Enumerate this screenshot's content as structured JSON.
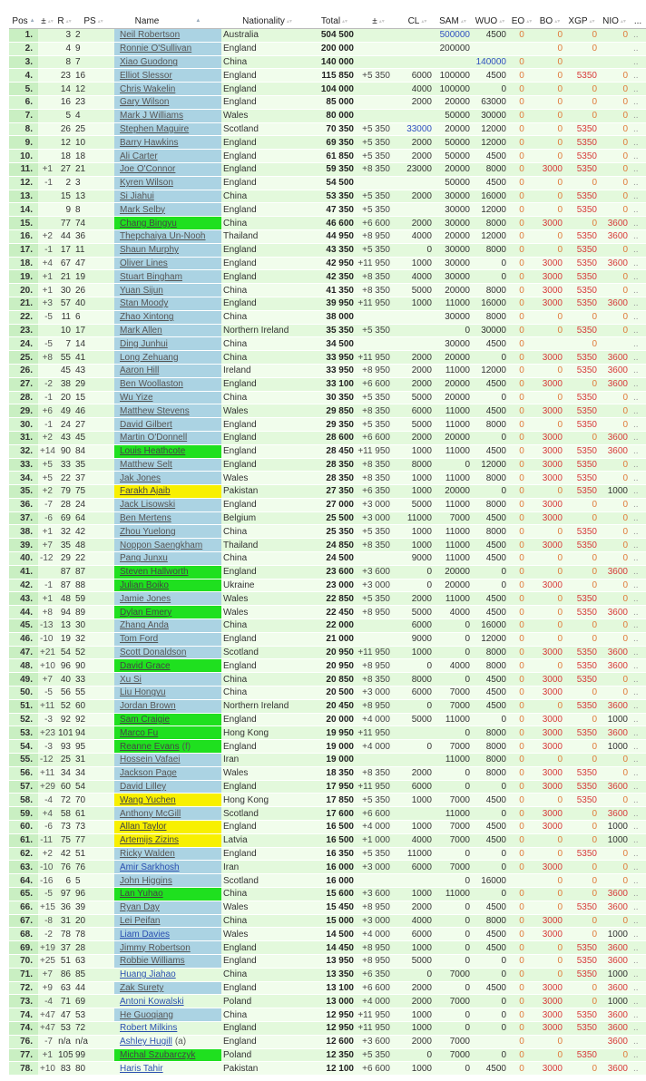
{
  "columns": [
    "Pos",
    "±",
    "R",
    "PS",
    "Name",
    "Nationality",
    "Total",
    "±",
    "CL",
    "SAM",
    "WUO",
    "EO",
    "BO",
    "XGP",
    "NIO",
    "..."
  ],
  "sorted_columns": [
    "Pos",
    "Name"
  ],
  "colors": {
    "name_default": "#abd3e3",
    "name_green": "#1fe01f",
    "name_yellow": "#f8f000",
    "stripe_a": "#e3f9dc",
    "stripe_b": "#f1fdec",
    "value_red": "#d83a3a",
    "value_zero": "#e07a3a",
    "value_blue": "#3050c0"
  },
  "more_marker": "..",
  "name_tags": {
    "54.": "(f)",
    "76.": "(a)"
  },
  "blue_value_cells": [
    [
      "1.",
      "SAM"
    ],
    [
      "3.",
      "WUO"
    ],
    [
      "8.",
      "CL"
    ]
  ],
  "blue_links": [
    "63.",
    "68."
  ],
  "rows": [
    [
      "1.",
      "",
      "3",
      "2",
      "Neil Robertson",
      "blue",
      "Australia",
      "504 500",
      "",
      "",
      "500000",
      "4500",
      "0",
      "0",
      "0",
      "0"
    ],
    [
      "2.",
      "",
      "4",
      "9",
      "Ronnie O'Sullivan",
      "blue",
      "England",
      "200 000",
      "",
      "",
      "200000",
      "",
      "",
      "0",
      "0",
      ""
    ],
    [
      "3.",
      "",
      "8",
      "7",
      "Xiao Guodong",
      "blue",
      "China",
      "140 000",
      "",
      "",
      "",
      "140000",
      "0",
      "0",
      "",
      ""
    ],
    [
      "4.",
      "",
      "23",
      "16",
      "Elliot Slessor",
      "blue",
      "England",
      "115 850",
      "+5 350",
      "6000",
      "100000",
      "4500",
      "0",
      "0",
      "5350",
      "0"
    ],
    [
      "5.",
      "",
      "14",
      "12",
      "Chris Wakelin",
      "blue",
      "England",
      "104 000",
      "",
      "4000",
      "100000",
      "0",
      "0",
      "0",
      "0",
      "0"
    ],
    [
      "6.",
      "",
      "16",
      "23",
      "Gary Wilson",
      "blue",
      "England",
      "85 000",
      "",
      "2000",
      "20000",
      "63000",
      "0",
      "0",
      "0",
      "0"
    ],
    [
      "7.",
      "",
      "5",
      "4",
      "Mark J Williams",
      "blue",
      "Wales",
      "80 000",
      "",
      "",
      "50000",
      "30000",
      "0",
      "0",
      "0",
      "0"
    ],
    [
      "8.",
      "",
      "26",
      "25",
      "Stephen Maguire",
      "blue",
      "Scotland",
      "70 350",
      "+5 350",
      "33000",
      "20000",
      "12000",
      "0",
      "0",
      "5350",
      "0"
    ],
    [
      "9.",
      "",
      "12",
      "10",
      "Barry Hawkins",
      "blue",
      "England",
      "69 350",
      "+5 350",
      "2000",
      "50000",
      "12000",
      "0",
      "0",
      "5350",
      "0"
    ],
    [
      "10.",
      "",
      "18",
      "18",
      "Ali Carter",
      "blue",
      "England",
      "61 850",
      "+5 350",
      "2000",
      "50000",
      "4500",
      "0",
      "0",
      "5350",
      "0"
    ],
    [
      "11.",
      "+1",
      "27",
      "21",
      "Joe O'Connor",
      "blue",
      "England",
      "59 350",
      "+8 350",
      "23000",
      "20000",
      "8000",
      "0",
      "3000",
      "5350",
      "0"
    ],
    [
      "12.",
      "-1",
      "2",
      "3",
      "Kyren Wilson",
      "blue",
      "England",
      "54 500",
      "",
      "",
      "50000",
      "4500",
      "0",
      "0",
      "0",
      "0"
    ],
    [
      "13.",
      "",
      "15",
      "13",
      "Si Jiahui",
      "blue",
      "China",
      "53 350",
      "+5 350",
      "2000",
      "30000",
      "16000",
      "0",
      "0",
      "5350",
      "0"
    ],
    [
      "14.",
      "",
      "9",
      "8",
      "Mark Selby",
      "blue",
      "England",
      "47 350",
      "+5 350",
      "",
      "30000",
      "12000",
      "0",
      "0",
      "5350",
      "0"
    ],
    [
      "15.",
      "",
      "77",
      "74",
      "Chang Bingyu",
      "green",
      "China",
      "46 600",
      "+6 600",
      "2000",
      "30000",
      "8000",
      "0",
      "3000",
      "0",
      "3600"
    ],
    [
      "16.",
      "+2",
      "44",
      "36",
      "Thepchaiya Un-Nooh",
      "blue",
      "Thailand",
      "44 950",
      "+8 950",
      "4000",
      "20000",
      "12000",
      "0",
      "0",
      "5350",
      "3600"
    ],
    [
      "17.",
      "-1",
      "17",
      "11",
      "Shaun Murphy",
      "blue",
      "England",
      "43 350",
      "+5 350",
      "0",
      "30000",
      "8000",
      "0",
      "0",
      "5350",
      "0"
    ],
    [
      "18.",
      "+4",
      "67",
      "47",
      "Oliver Lines",
      "blue",
      "England",
      "42 950",
      "+11 950",
      "1000",
      "30000",
      "0",
      "0",
      "3000",
      "5350",
      "3600"
    ],
    [
      "19.",
      "+1",
      "21",
      "19",
      "Stuart Bingham",
      "blue",
      "England",
      "42 350",
      "+8 350",
      "4000",
      "30000",
      "0",
      "0",
      "3000",
      "5350",
      "0"
    ],
    [
      "20.",
      "+1",
      "30",
      "26",
      "Yuan Sijun",
      "blue",
      "China",
      "41 350",
      "+8 350",
      "5000",
      "20000",
      "8000",
      "0",
      "3000",
      "5350",
      "0"
    ],
    [
      "21.",
      "+3",
      "57",
      "40",
      "Stan Moody",
      "blue",
      "England",
      "39 950",
      "+11 950",
      "1000",
      "11000",
      "16000",
      "0",
      "3000",
      "5350",
      "3600"
    ],
    [
      "22.",
      "-5",
      "11",
      "6",
      "Zhao Xintong",
      "blue",
      "China",
      "38 000",
      "",
      "",
      "30000",
      "8000",
      "0",
      "0",
      "0",
      "0"
    ],
    [
      "23.",
      "",
      "10",
      "17",
      "Mark Allen",
      "blue",
      "Northern Ireland",
      "35 350",
      "+5 350",
      "",
      "0",
      "30000",
      "0",
      "0",
      "5350",
      "0"
    ],
    [
      "24.",
      "-5",
      "7",
      "14",
      "Ding Junhui",
      "blue",
      "China",
      "34 500",
      "",
      "",
      "30000",
      "4500",
      "0",
      "",
      "0",
      ""
    ],
    [
      "25.",
      "+8",
      "55",
      "41",
      "Long Zehuang",
      "blue",
      "China",
      "33 950",
      "+11 950",
      "2000",
      "20000",
      "0",
      "0",
      "3000",
      "5350",
      "3600"
    ],
    [
      "26.",
      "",
      "45",
      "43",
      "Aaron Hill",
      "blue",
      "Ireland",
      "33 950",
      "+8 950",
      "2000",
      "11000",
      "12000",
      "0",
      "0",
      "5350",
      "3600"
    ],
    [
      "27.",
      "-2",
      "38",
      "29",
      "Ben Woollaston",
      "blue",
      "England",
      "33 100",
      "+6 600",
      "2000",
      "20000",
      "4500",
      "0",
      "3000",
      "0",
      "3600"
    ],
    [
      "28.",
      "-1",
      "20",
      "15",
      "Wu Yize",
      "blue",
      "China",
      "30 350",
      "+5 350",
      "5000",
      "20000",
      "0",
      "0",
      "0",
      "5350",
      "0"
    ],
    [
      "29.",
      "+6",
      "49",
      "46",
      "Matthew Stevens",
      "blue",
      "Wales",
      "29 850",
      "+8 350",
      "6000",
      "11000",
      "4500",
      "0",
      "3000",
      "5350",
      "0"
    ],
    [
      "30.",
      "-1",
      "24",
      "27",
      "David Gilbert",
      "blue",
      "England",
      "29 350",
      "+5 350",
      "5000",
      "11000",
      "8000",
      "0",
      "0",
      "5350",
      "0"
    ],
    [
      "31.",
      "+2",
      "43",
      "45",
      "Martin O'Donnell",
      "blue",
      "England",
      "28 600",
      "+6 600",
      "2000",
      "20000",
      "0",
      "0",
      "3000",
      "0",
      "3600"
    ],
    [
      "32.",
      "+14",
      "90",
      "84",
      "Louis Heathcote",
      "green",
      "England",
      "28 450",
      "+11 950",
      "1000",
      "11000",
      "4500",
      "0",
      "3000",
      "5350",
      "3600"
    ],
    [
      "33.",
      "+5",
      "33",
      "35",
      "Matthew Selt",
      "blue",
      "England",
      "28 350",
      "+8 350",
      "8000",
      "0",
      "12000",
      "0",
      "3000",
      "5350",
      "0"
    ],
    [
      "34.",
      "+5",
      "22",
      "37",
      "Jak Jones",
      "blue",
      "Wales",
      "28 350",
      "+8 350",
      "1000",
      "11000",
      "8000",
      "0",
      "3000",
      "5350",
      "0"
    ],
    [
      "35.",
      "+2",
      "79",
      "75",
      "Farakh Ajaib",
      "yellow",
      "Pakistan",
      "27 350",
      "+6 350",
      "1000",
      "20000",
      "0",
      "0",
      "0",
      "5350",
      "1000"
    ],
    [
      "36.",
      "-7",
      "28",
      "24",
      "Jack Lisowski",
      "blue",
      "England",
      "27 000",
      "+3 000",
      "5000",
      "11000",
      "8000",
      "0",
      "3000",
      "0",
      "0"
    ],
    [
      "37.",
      "-6",
      "69",
      "64",
      "Ben Mertens",
      "blue",
      "Belgium",
      "25 500",
      "+3 000",
      "11000",
      "7000",
      "4500",
      "0",
      "3000",
      "0",
      "0"
    ],
    [
      "38.",
      "+1",
      "32",
      "42",
      "Zhou Yuelong",
      "blue",
      "China",
      "25 350",
      "+5 350",
      "1000",
      "11000",
      "8000",
      "0",
      "0",
      "5350",
      "0"
    ],
    [
      "39.",
      "+7",
      "35",
      "48",
      "Noppon Saengkham",
      "blue",
      "Thailand",
      "24 850",
      "+8 350",
      "1000",
      "11000",
      "4500",
      "0",
      "3000",
      "5350",
      "0"
    ],
    [
      "40.",
      "-12",
      "29",
      "22",
      "Pang Junxu",
      "blue",
      "China",
      "24 500",
      "",
      "9000",
      "11000",
      "4500",
      "0",
      "0",
      "0",
      "0"
    ],
    [
      "41.",
      "",
      "87",
      "87",
      "Steven Hallworth",
      "green",
      "England",
      "23 600",
      "+3 600",
      "0",
      "20000",
      "0",
      "0",
      "0",
      "0",
      "3600"
    ],
    [
      "42.",
      "-1",
      "87",
      "88",
      "Julian Boiko",
      "green",
      "Ukraine",
      "23 000",
      "+3 000",
      "0",
      "20000",
      "0",
      "0",
      "3000",
      "0",
      "0"
    ],
    [
      "43.",
      "+1",
      "48",
      "59",
      "Jamie Jones",
      "blue",
      "Wales",
      "22 850",
      "+5 350",
      "2000",
      "11000",
      "4500",
      "0",
      "0",
      "5350",
      "0"
    ],
    [
      "44.",
      "+8",
      "94",
      "89",
      "Dylan Emery",
      "green",
      "Wales",
      "22 450",
      "+8 950",
      "5000",
      "4000",
      "4500",
      "0",
      "0",
      "5350",
      "3600"
    ],
    [
      "45.",
      "-13",
      "13",
      "30",
      "Zhang Anda",
      "blue",
      "China",
      "22 000",
      "",
      "6000",
      "0",
      "16000",
      "0",
      "0",
      "0",
      "0"
    ],
    [
      "46.",
      "-10",
      "19",
      "32",
      "Tom Ford",
      "blue",
      "England",
      "21 000",
      "",
      "9000",
      "0",
      "12000",
      "0",
      "0",
      "0",
      "0"
    ],
    [
      "47.",
      "+21",
      "54",
      "52",
      "Scott Donaldson",
      "blue",
      "Scotland",
      "20 950",
      "+11 950",
      "1000",
      "0",
      "8000",
      "0",
      "3000",
      "5350",
      "3600"
    ],
    [
      "48.",
      "+10",
      "96",
      "90",
      "David Grace",
      "green",
      "England",
      "20 950",
      "+8 950",
      "0",
      "4000",
      "8000",
      "0",
      "0",
      "5350",
      "3600"
    ],
    [
      "49.",
      "+7",
      "40",
      "33",
      "Xu Si",
      "blue",
      "China",
      "20 850",
      "+8 350",
      "8000",
      "0",
      "4500",
      "0",
      "3000",
      "5350",
      "0"
    ],
    [
      "50.",
      "-5",
      "56",
      "55",
      "Liu Hongyu",
      "blue",
      "China",
      "20 500",
      "+3 000",
      "6000",
      "7000",
      "4500",
      "0",
      "3000",
      "0",
      "0"
    ],
    [
      "51.",
      "+11",
      "52",
      "60",
      "Jordan Brown",
      "blue",
      "Northern Ireland",
      "20 450",
      "+8 950",
      "0",
      "7000",
      "4500",
      "0",
      "0",
      "5350",
      "3600"
    ],
    [
      "52.",
      "-3",
      "92",
      "92",
      "Sam Craigie",
      "green",
      "England",
      "20 000",
      "+4 000",
      "5000",
      "11000",
      "0",
      "0",
      "3000",
      "0",
      "1000"
    ],
    [
      "53.",
      "+23",
      "101",
      "94",
      "Marco Fu",
      "green",
      "Hong Kong",
      "19 950",
      "+11 950",
      "",
      "0",
      "8000",
      "0",
      "3000",
      "5350",
      "3600"
    ],
    [
      "54.",
      "-3",
      "93",
      "95",
      "Reanne Evans",
      "green",
      "England",
      "19 000",
      "+4 000",
      "0",
      "7000",
      "8000",
      "0",
      "3000",
      "0",
      "1000"
    ],
    [
      "55.",
      "-12",
      "25",
      "31",
      "Hossein Vafaei",
      "blue",
      "Iran",
      "19 000",
      "",
      "",
      "11000",
      "8000",
      "0",
      "0",
      "0",
      "0"
    ],
    [
      "56.",
      "+11",
      "34",
      "34",
      "Jackson Page",
      "blue",
      "Wales",
      "18 350",
      "+8 350",
      "2000",
      "0",
      "8000",
      "0",
      "3000",
      "5350",
      "0"
    ],
    [
      "57.",
      "+29",
      "60",
      "54",
      "David Lilley",
      "blue",
      "England",
      "17 950",
      "+11 950",
      "6000",
      "0",
      "0",
      "0",
      "3000",
      "5350",
      "3600"
    ],
    [
      "58.",
      "-4",
      "72",
      "70",
      "Wang Yuchen",
      "yellow",
      "Hong Kong",
      "17 850",
      "+5 350",
      "1000",
      "7000",
      "4500",
      "0",
      "0",
      "5350",
      "0"
    ],
    [
      "59.",
      "+4",
      "58",
      "61",
      "Anthony McGill",
      "blue",
      "Scotland",
      "17 600",
      "+6 600",
      "",
      "11000",
      "0",
      "0",
      "3000",
      "0",
      "3600"
    ],
    [
      "60.",
      "-6",
      "73",
      "73",
      "Allan Taylor",
      "yellow",
      "England",
      "16 500",
      "+4 000",
      "1000",
      "7000",
      "4500",
      "0",
      "3000",
      "0",
      "1000"
    ],
    [
      "61.",
      "-11",
      "75",
      "77",
      "Artemijs Zizins",
      "yellow",
      "Latvia",
      "16 500",
      "+1 000",
      "4000",
      "7000",
      "4500",
      "0",
      "0",
      "0",
      "1000"
    ],
    [
      "62.",
      "+2",
      "42",
      "51",
      "Ricky Walden",
      "blue",
      "England",
      "16 350",
      "+5 350",
      "11000",
      "0",
      "0",
      "0",
      "0",
      "5350",
      "0"
    ],
    [
      "63.",
      "-10",
      "76",
      "76",
      "Amir Sarkhosh",
      "blue",
      "Iran",
      "16 000",
      "+3 000",
      "6000",
      "7000",
      "0",
      "0",
      "3000",
      "0",
      "0"
    ],
    [
      "64.",
      "-16",
      "6",
      "5",
      "John Higgins",
      "blue",
      "Scotland",
      "16 000",
      "",
      "",
      "0",
      "16000",
      "",
      "0",
      "0",
      "0"
    ],
    [
      "65.",
      "-5",
      "97",
      "96",
      "Lan Yuhao",
      "green",
      "China",
      "15 600",
      "+3 600",
      "1000",
      "11000",
      "0",
      "0",
      "0",
      "0",
      "3600"
    ],
    [
      "66.",
      "+15",
      "36",
      "39",
      "Ryan Day",
      "blue",
      "Wales",
      "15 450",
      "+8 950",
      "2000",
      "0",
      "4500",
      "0",
      "0",
      "5350",
      "3600"
    ],
    [
      "67.",
      "-8",
      "31",
      "20",
      "Lei Peifan",
      "blue",
      "China",
      "15 000",
      "+3 000",
      "4000",
      "0",
      "8000",
      "0",
      "3000",
      "0",
      "0"
    ],
    [
      "68.",
      "-2",
      "78",
      "78",
      "Liam Davies",
      "blue",
      "Wales",
      "14 500",
      "+4 000",
      "6000",
      "0",
      "4500",
      "0",
      "3000",
      "0",
      "1000"
    ],
    [
      "69.",
      "+19",
      "37",
      "28",
      "Jimmy Robertson",
      "blue",
      "England",
      "14 450",
      "+8 950",
      "1000",
      "0",
      "4500",
      "0",
      "0",
      "5350",
      "3600"
    ],
    [
      "70.",
      "+25",
      "51",
      "63",
      "Robbie Williams",
      "blue",
      "England",
      "13 950",
      "+8 950",
      "5000",
      "0",
      "0",
      "0",
      "0",
      "5350",
      "3600"
    ],
    [
      "71.",
      "+7",
      "86",
      "85",
      "Huang Jiahao",
      "none",
      "China",
      "13 350",
      "+6 350",
      "0",
      "7000",
      "0",
      "0",
      "0",
      "5350",
      "1000"
    ],
    [
      "72.",
      "+9",
      "63",
      "44",
      "Zak Surety",
      "blue",
      "England",
      "13 100",
      "+6 600",
      "2000",
      "0",
      "4500",
      "0",
      "3000",
      "0",
      "3600"
    ],
    [
      "73.",
      "-4",
      "71",
      "69",
      "Antoni Kowalski",
      "none",
      "Poland",
      "13 000",
      "+4 000",
      "2000",
      "7000",
      "0",
      "0",
      "3000",
      "0",
      "1000"
    ],
    [
      "74.",
      "+47",
      "47",
      "53",
      "He Guoqiang",
      "blue",
      "China",
      "12 950",
      "+11 950",
      "1000",
      "0",
      "0",
      "0",
      "3000",
      "5350",
      "3600"
    ],
    [
      "74.",
      "+47",
      "53",
      "72",
      "Robert Milkins",
      "none",
      "England",
      "12 950",
      "+11 950",
      "1000",
      "0",
      "0",
      "0",
      "3000",
      "5350",
      "3600"
    ],
    [
      "76.",
      "-7",
      "n/a",
      "n/a",
      "Ashley Hugill",
      "none",
      "England",
      "12 600",
      "+3 600",
      "2000",
      "7000",
      "",
      "0",
      "0",
      "",
      "3600"
    ],
    [
      "77.",
      "+1",
      "105",
      "99",
      "Michal Szubarczyk",
      "green",
      "Poland",
      "12 350",
      "+5 350",
      "0",
      "7000",
      "0",
      "0",
      "0",
      "5350",
      "0"
    ],
    [
      "78.",
      "+10",
      "83",
      "80",
      "Haris Tahir",
      "none",
      "Pakistan",
      "12 100",
      "+6 600",
      "1000",
      "0",
      "4500",
      "0",
      "3000",
      "0",
      "3600"
    ]
  ]
}
